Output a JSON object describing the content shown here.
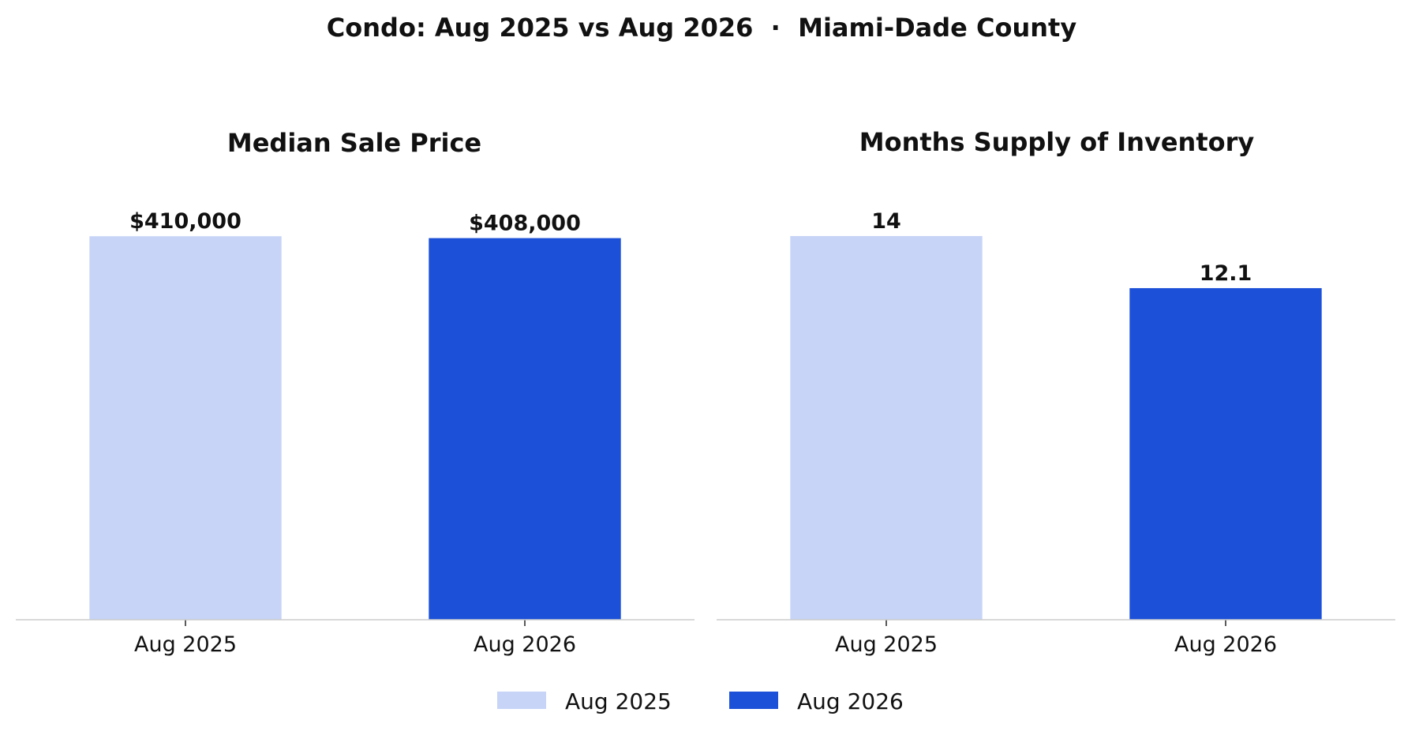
{
  "figure": {
    "suptitle": "Condo: Aug 2025 vs Aug 2026  ·  Miami-Dade County"
  },
  "chart_data": [
    {
      "type": "bar",
      "title": "Median Sale Price",
      "categories": [
        "Aug 2025",
        "Aug 2026"
      ],
      "values": [
        410000,
        408000
      ],
      "value_labels": [
        "$410,000",
        "$408,000"
      ],
      "ylim": [
        0,
        460000
      ],
      "grid": false,
      "y_axis_visible": false
    },
    {
      "type": "bar",
      "title": "Months Supply of Inventory",
      "categories": [
        "Aug 2025",
        "Aug 2026"
      ],
      "values": [
        14,
        12.1
      ],
      "value_labels": [
        "14",
        "12.1"
      ],
      "ylim": [
        0,
        15.7
      ],
      "grid": false,
      "y_axis_visible": false
    }
  ],
  "legend": {
    "placement": "bottom-center",
    "items": [
      {
        "label": "Aug 2025",
        "color": "#C7D4F7"
      },
      {
        "label": "Aug 2026",
        "color": "#1C50D8"
      }
    ]
  },
  "colors": {
    "bar_2025": "#C7D4F7",
    "bar_2026": "#1C50D8",
    "axis_line": "#CCCCCC",
    "text": "#111111"
  }
}
